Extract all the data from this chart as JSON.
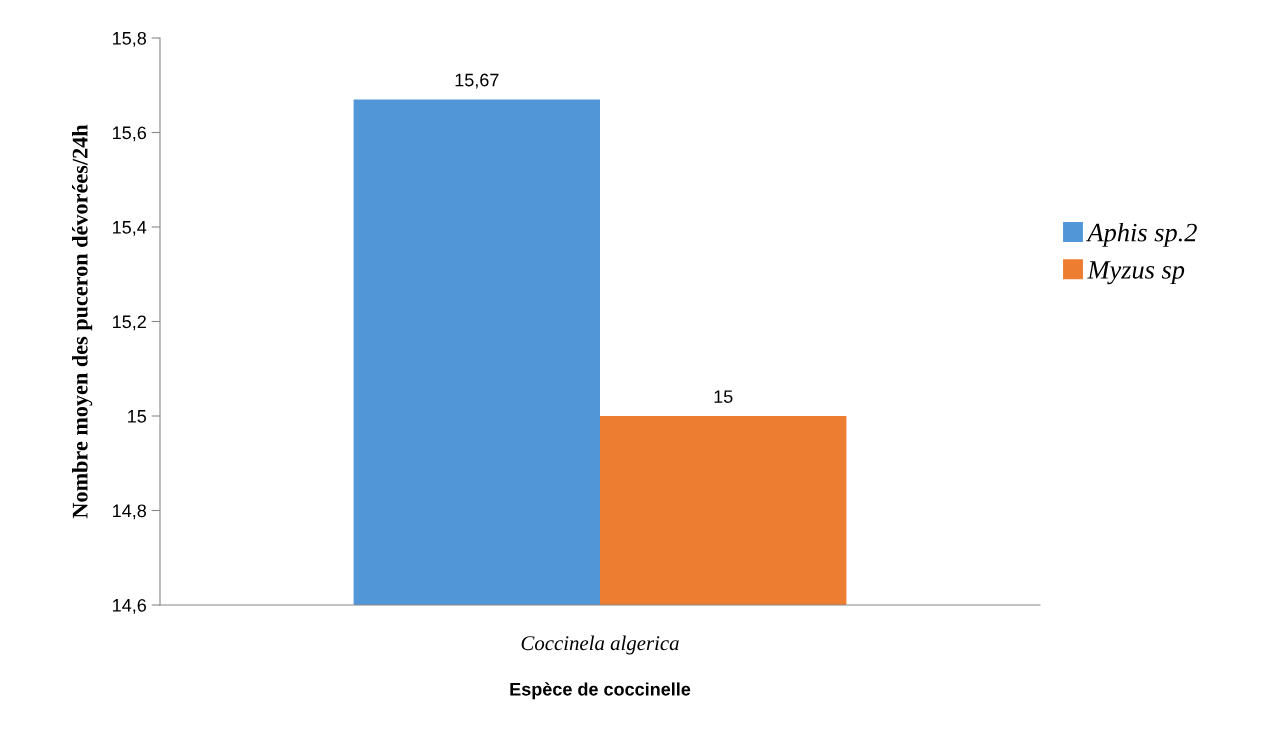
{
  "chart_data": {
    "type": "bar",
    "xlabel": "Espèce de coccinelle",
    "ylabel": "Nombre moyen des puceron dévorées/24h",
    "categories": [
      "Coccinela algerica"
    ],
    "series": [
      {
        "name": "Aphis sp.2",
        "color": "#5197d8",
        "values": [
          15.67
        ],
        "value_labels": [
          "15,67"
        ]
      },
      {
        "name": "Myzus sp",
        "color": "#ed7d31",
        "values": [
          15
        ],
        "value_labels": [
          "15"
        ]
      }
    ],
    "ylim": [
      14.6,
      15.8
    ],
    "yticks": [
      {
        "value": 14.6,
        "label": "14,6"
      },
      {
        "value": 14.8,
        "label": "14,8"
      },
      15,
      {
        "value": 15.2,
        "label": "15,2"
      },
      {
        "value": 15.4,
        "label": "15,4"
      },
      {
        "value": 15.6,
        "label": "15,6"
      },
      {
        "value": 15.8,
        "label": "15,8"
      }
    ],
    "grid": false,
    "legend": "right"
  }
}
